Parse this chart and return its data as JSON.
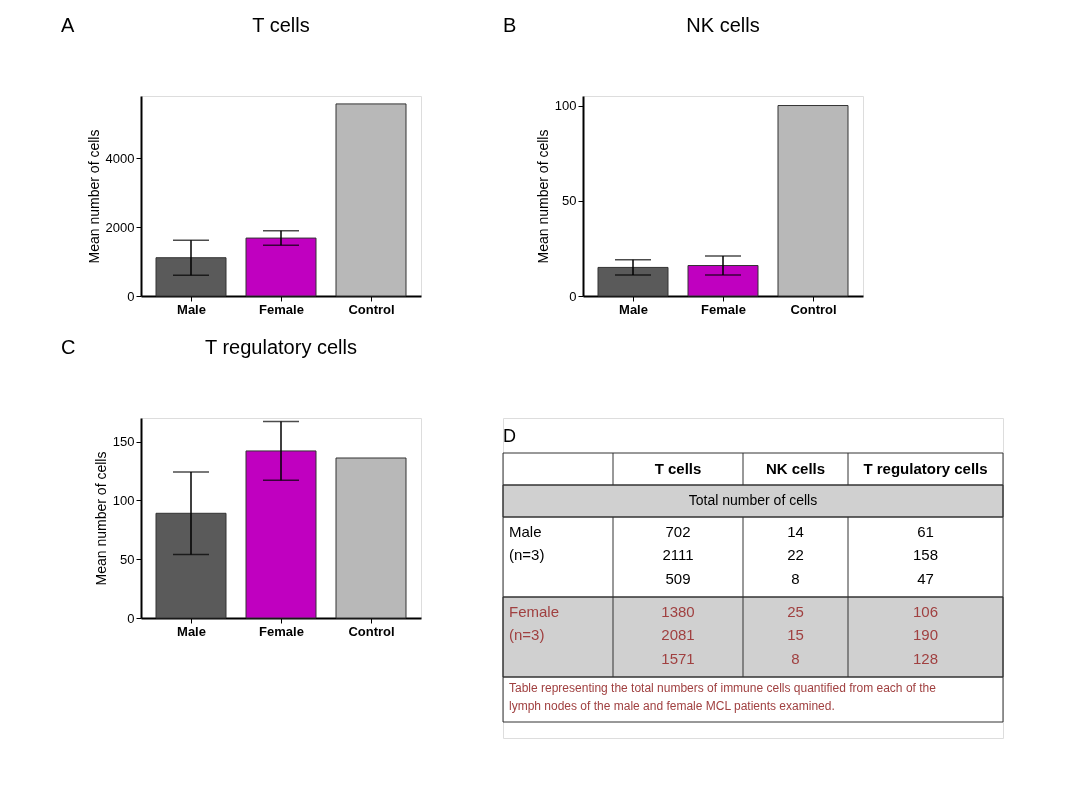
{
  "chart_data": [
    {
      "type": "bar",
      "title": "T cells",
      "annotations": [
        "A"
      ],
      "ylabel": "Mean number of cells",
      "categories": [
        "Male",
        "Female",
        "Control"
      ],
      "values": [
        1110,
        1680,
        5570
      ],
      "errors": [
        510,
        210,
        null
      ],
      "colors": [
        "#5a5a5a",
        "#c000c0",
        "#b8b8b8"
      ],
      "ylim": [
        0,
        5800
      ],
      "yticks": [
        0,
        2000,
        4000
      ],
      "grid": false
    },
    {
      "type": "bar",
      "title": "NK cells",
      "annotations": [
        "B"
      ],
      "ylabel": "Mean number of cells",
      "categories": [
        "Male",
        "Female",
        "Control"
      ],
      "values": [
        15,
        16,
        100
      ],
      "errors": [
        4,
        5,
        null
      ],
      "colors": [
        "#5a5a5a",
        "#c000c0",
        "#b8b8b8"
      ],
      "ylim": [
        0,
        105
      ],
      "yticks": [
        0,
        50,
        100
      ],
      "grid": false
    },
    {
      "type": "bar",
      "title": "T regulatory cells",
      "annotations": [
        "C"
      ],
      "ylabel": "Mean number of cells",
      "categories": [
        "Male",
        "Female",
        "Control"
      ],
      "values": [
        89,
        142,
        136
      ],
      "errors": [
        35,
        25,
        null
      ],
      "colors": [
        "#5a5a5a",
        "#c000c0",
        "#b8b8b8"
      ],
      "ylim": [
        0,
        170
      ],
      "yticks": [
        0,
        50,
        100,
        150
      ],
      "grid": false
    },
    {
      "type": "other",
      "annotations": [
        "D",
        "T cells",
        "NK cells",
        "T regulatory cells",
        "Total number of cells",
        "Male\n(n=3)",
        "702\n2111\n509",
        "14\n22\n8",
        "61\n158\n47",
        "Female\n(n=3)",
        "1380\n2081\n1571",
        "25\n15\n8",
        "106\n190\n128",
        "Table representing the total numbers of immune cells quantified from each of the\nlymph nodes of the male and female MCL patients examined."
      ]
    }
  ]
}
